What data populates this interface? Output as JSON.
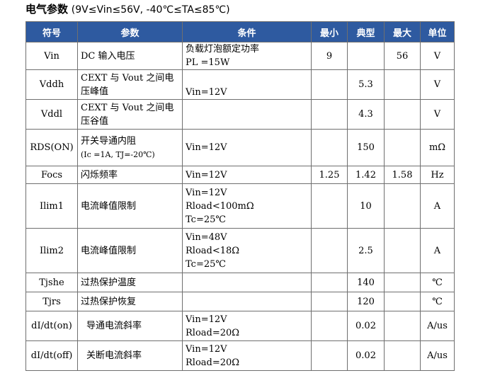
{
  "heading": {
    "title": "电气参数",
    "condition": "(9V≤Vin≤56V, -40℃≤TA≤85℃)"
  },
  "columns": [
    "符号",
    "参数",
    "条件",
    "最小",
    "典型",
    "最大",
    "单位"
  ],
  "rows": [
    {
      "symbol": "Vin",
      "param": "DC 输入电压",
      "cond1": "负载灯泡额定功率",
      "cond2": "PL  =15W",
      "cond3": "",
      "min": "9",
      "typ": "",
      "max": "56",
      "unit": "V"
    },
    {
      "symbol": "Vddh",
      "param": "CEXT 与 Vout 之间电压峰值",
      "cond1": "",
      "cond2": "Vin=12V",
      "cond3": "",
      "min": "",
      "typ": "5.3",
      "max": "",
      "unit": "V"
    },
    {
      "symbol": "Vddl",
      "param": "CEXT 与 Vout 之间电压谷值",
      "cond1": "",
      "cond2": "",
      "cond3": "",
      "min": "",
      "typ": "4.3",
      "max": "",
      "unit": "V"
    },
    {
      "symbol": "RDS(ON)",
      "param": "开关导通内阻",
      "param2": "(Ic =1A, TJ=-20℃)",
      "cond1": "Vin=12V",
      "cond2": "",
      "cond3": "",
      "min": "",
      "typ": "150",
      "max": "",
      "unit": "mΩ"
    },
    {
      "symbol": "Focs",
      "param": "闪烁频率",
      "cond1": "Vin=12V",
      "cond2": "",
      "cond3": "",
      "min": "1.25",
      "typ": "1.42",
      "max": "1.58",
      "unit": "Hz"
    },
    {
      "symbol": "Ilim1",
      "param": "电流峰值限制",
      "cond1": "Vin=12V",
      "cond2": "Rload<100mΩ",
      "cond3": "Tc=25℃",
      "min": "",
      "typ": "10",
      "max": "",
      "unit": "A"
    },
    {
      "symbol": "Ilim2",
      "param": "电流峰值限制",
      "cond1": "Vin=48V",
      "cond2": "Rload<18Ω",
      "cond3": "Tc=25℃",
      "min": "",
      "typ": "2.5",
      "max": "",
      "unit": "A"
    },
    {
      "symbol": "Tjshe",
      "param": "过热保护温度",
      "cond1": "",
      "cond2": "",
      "cond3": "",
      "min": "",
      "typ": "140",
      "max": "",
      "unit": "℃"
    },
    {
      "symbol": "Tjrs",
      "param": "过热保护恢复",
      "cond1": "",
      "cond2": "",
      "cond3": "",
      "min": "",
      "typ": "120",
      "max": "",
      "unit": "℃"
    },
    {
      "symbol": "dI/dt(on)",
      "param": "导通电流斜率",
      "cond1": "Vin=12V",
      "cond2": "Rload=20Ω",
      "cond3": "",
      "min": "",
      "typ": "0.02",
      "max": "",
      "unit": "A/us"
    },
    {
      "symbol": "dI/dt(off)",
      "param": "关断电流斜率",
      "cond1": "Vin=12V",
      "cond2": "Rload=20Ω",
      "cond3": "",
      "min": "",
      "typ": "0.02",
      "max": "",
      "unit": "A/us"
    }
  ]
}
